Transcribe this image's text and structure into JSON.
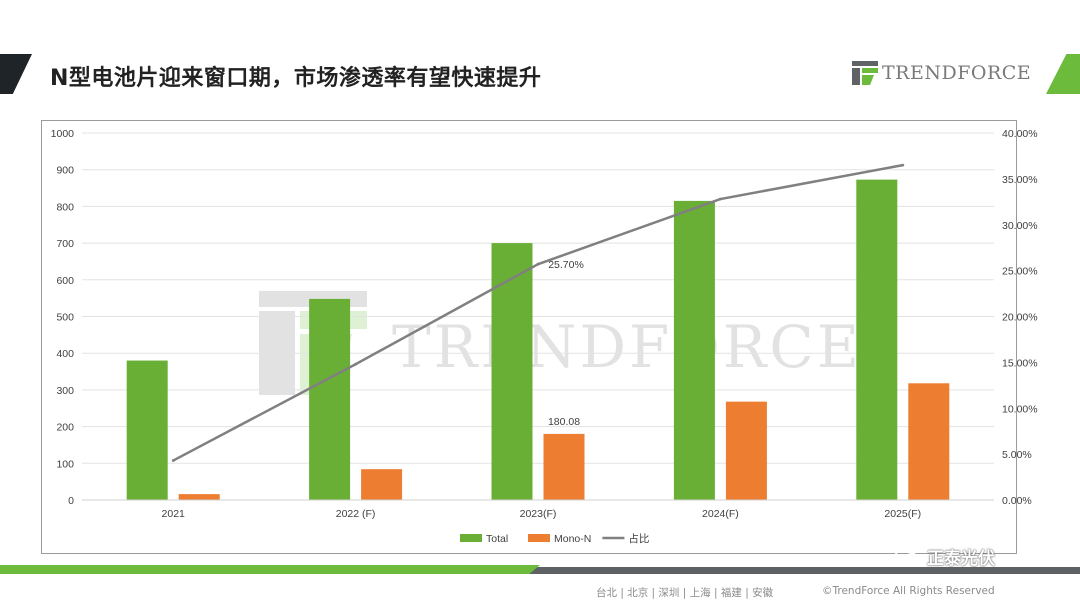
{
  "header": {
    "title": "N型电池片迎来窗口期，市场渗透率有望快速提升",
    "logo_text": "TRENDFORCE"
  },
  "watermark": {
    "text": "TRENDFORCE"
  },
  "footer": {
    "cities": "台北 | 北京 | 深圳 | 上海 | 福建 | 安徽",
    "copyright": "©TrendForce All Rights Reserved",
    "wechat_label": "正泰光伏"
  },
  "colors": {
    "total": "#6aaf35",
    "mono_n": "#ed7d31",
    "share": "#808080",
    "accent_dark": "#1f2428",
    "accent_green": "#6dbb3c"
  },
  "chart_data": {
    "type": "bar",
    "categories": [
      "2021",
      "2022 (F)",
      "2023(F)",
      "2024(F)",
      "2025(F)"
    ],
    "series": [
      {
        "name": "Total",
        "kind": "bar",
        "axis": "left",
        "values": [
          380,
          548,
          700,
          815,
          873
        ]
      },
      {
        "name": "Mono-N",
        "kind": "bar",
        "axis": "left",
        "values": [
          16,
          84,
          180.08,
          268,
          318
        ]
      },
      {
        "name": "占比",
        "kind": "line",
        "axis": "right",
        "values": [
          4.3,
          14.8,
          25.7,
          32.8,
          36.5
        ]
      }
    ],
    "ylim": [
      0,
      1000
    ],
    "y_ticks": [
      "0",
      "100",
      "200",
      "300",
      "400",
      "500",
      "600",
      "700",
      "800",
      "900",
      "1000"
    ],
    "y2lim": [
      0,
      40
    ],
    "y2_ticks": [
      "0.00%",
      "5.00%",
      "10.00%",
      "15.00%",
      "20.00%",
      "25.00%",
      "30.00%",
      "35.00%",
      "40.00%"
    ],
    "data_labels": [
      {
        "series": "Mono-N",
        "category": "2023(F)",
        "text": "180.08"
      },
      {
        "series": "占比",
        "category": "2023(F)",
        "text": "25.70%"
      }
    ],
    "legend_position": "bottom",
    "grid": true
  }
}
